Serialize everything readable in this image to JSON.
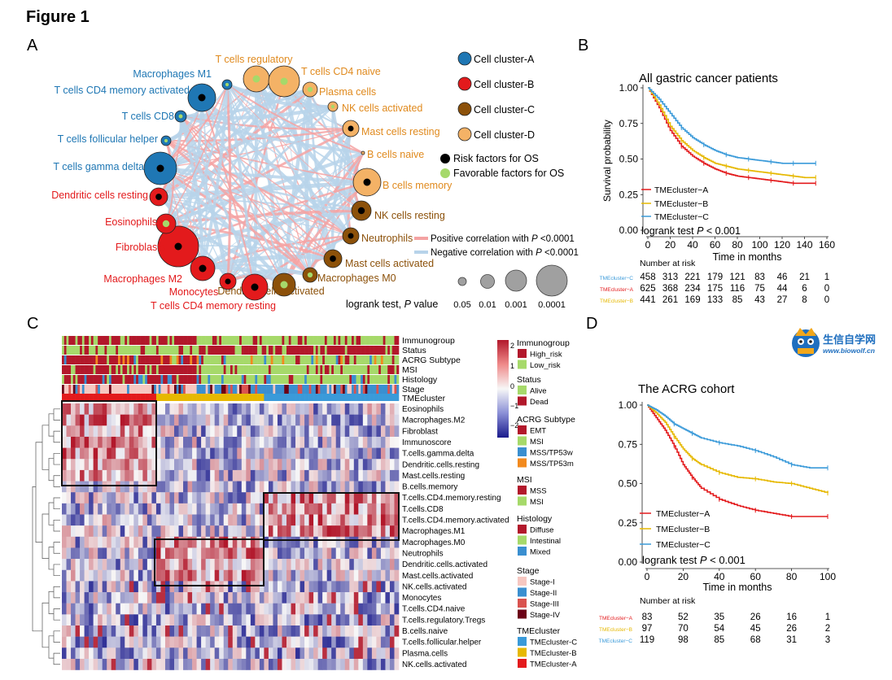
{
  "figure_title": "Figure 1",
  "panels": {
    "A": "A",
    "B": "B",
    "C": "C",
    "D": "D"
  },
  "colors": {
    "clusterA": "#1f77b4",
    "clusterB": "#e31a1c",
    "clusterC": "#8c510a",
    "clusterD": "#f4b266",
    "clusterD_text": "#e08a1e",
    "clusterC_text": "#8c510a",
    "risk": "#000000",
    "favorable": "#a6d96a",
    "pos_corr": "#f4a3a3",
    "neg_corr": "#b7d3ea",
    "tme_A": "#e31a1c",
    "tme_B": "#e6b800",
    "tme_C": "#3a9ad9"
  },
  "network": {
    "legend": {
      "clusters": [
        "Cell cluster-A",
        "Cell cluster-B",
        "Cell cluster-C",
        "Cell cluster-D"
      ],
      "risk": "Risk factors for OS",
      "favorable": "Favorable factors for OS",
      "pos_corr": "Positive correlation with ",
      "neg_corr": "Negative correlation with ",
      "p_italic": "P",
      "p_value_text": " <0.0001",
      "size_title_prefix": "logrank test, ",
      "size_title_suffix": " value",
      "size_values": [
        "0.05",
        "0.01",
        "0.001",
        "0.0001"
      ]
    },
    "nodes": [
      {
        "label": "T cells regulatory",
        "cluster": "D",
        "factor": "favorable"
      },
      {
        "label": "T cells CD4 naive",
        "cluster": "D",
        "factor": "favorable"
      },
      {
        "label": "Plasma cells",
        "cluster": "D",
        "factor": "favorable"
      },
      {
        "label": "NK cells activated",
        "cluster": "D",
        "factor": "favorable"
      },
      {
        "label": "Mast cells resting",
        "cluster": "D",
        "factor": "risk"
      },
      {
        "label": "B cells naive",
        "cluster": "D",
        "factor": "risk"
      },
      {
        "label": "B cells memory",
        "cluster": "D",
        "factor": "risk"
      },
      {
        "label": "NK cells resting",
        "cluster": "C",
        "factor": "risk"
      },
      {
        "label": "Neutrophils",
        "cluster": "C",
        "factor": "risk"
      },
      {
        "label": "Mast cells activated",
        "cluster": "C",
        "factor": "risk"
      },
      {
        "label": "Macrophages M0",
        "cluster": "C",
        "factor": "favorable"
      },
      {
        "label": "Dendritic cells activated",
        "cluster": "C",
        "factor": "favorable"
      },
      {
        "label": "T cells CD4 memory resting",
        "cluster": "B",
        "factor": "risk"
      },
      {
        "label": "Monocytes",
        "cluster": "B",
        "factor": "risk"
      },
      {
        "label": "Macrophages M2",
        "cluster": "B",
        "factor": "risk"
      },
      {
        "label": "Fibroblasts",
        "cluster": "B",
        "factor": "risk"
      },
      {
        "label": "Eosinophils",
        "cluster": "B",
        "factor": "favorable"
      },
      {
        "label": "Dendritic cells resting",
        "cluster": "B",
        "factor": "risk"
      },
      {
        "label": "T cells gamma delta",
        "cluster": "A",
        "factor": "risk"
      },
      {
        "label": "T cells follicular helper",
        "cluster": "A",
        "factor": "favorable"
      },
      {
        "label": "T cells CD8",
        "cluster": "A",
        "factor": "favorable"
      },
      {
        "label": "T cells CD4 memory activated",
        "cluster": "A",
        "factor": "risk"
      },
      {
        "label": "Macrophages M1",
        "cluster": "A",
        "factor": "favorable"
      }
    ]
  },
  "km_B": {
    "title": "All gastric cancer patients",
    "xlabel": "Time in months",
    "ylabel": "Survival probability",
    "x_ticks": [
      "0",
      "20",
      "40",
      "60",
      "80",
      "100",
      "120",
      "140",
      "160"
    ],
    "y_ticks": [
      "0.00",
      "0.25",
      "0.50",
      "0.75",
      "1.00"
    ],
    "xlim": [
      0,
      160
    ],
    "ylim": [
      0,
      1
    ],
    "legend": [
      "TMEcluster−A",
      "TMEcluster−B",
      "TMEcluster−C"
    ],
    "logrank_prefix": "logrank test ",
    "logrank_p": "P",
    "logrank_value": " < 0.001",
    "risk_title": "Number at risk",
    "risk_rows": [
      {
        "label": "TMEcluster−C",
        "values": [
          "458",
          "313",
          "221",
          "179",
          "121",
          "83",
          "46",
          "21",
          "1"
        ]
      },
      {
        "label": "TMEcluster−A",
        "values": [
          "625",
          "368",
          "234",
          "175",
          "116",
          "75",
          "44",
          "6",
          "0"
        ]
      },
      {
        "label": "TMEcluster−B",
        "values": [
          "441",
          "261",
          "169",
          "133",
          "85",
          "43",
          "27",
          "8",
          "0"
        ]
      }
    ]
  },
  "km_D": {
    "title": "The ACRG cohort",
    "xlabel": "Time in months",
    "x_ticks": [
      "0",
      "20",
      "40",
      "60",
      "80",
      "100"
    ],
    "y_ticks": [
      "0.00",
      "0.25",
      "0.50",
      "0.75",
      "1.00"
    ],
    "xlim": [
      0,
      100
    ],
    "ylim": [
      0,
      1
    ],
    "legend": [
      "TMEcluster−A",
      "TMEcluster−B",
      "TMEcluster−C"
    ],
    "logrank_prefix": "logrank test ",
    "logrank_p": "P",
    "logrank_value": " < 0.001",
    "risk_title": "Number at risk",
    "risk_rows": [
      {
        "label": "TMEcluster−A",
        "values": [
          "83",
          "52",
          "35",
          "26",
          "16",
          "1"
        ]
      },
      {
        "label": "TMEcluster−B",
        "values": [
          "97",
          "70",
          "54",
          "45",
          "26",
          "2"
        ]
      },
      {
        "label": "TMEcluster−C",
        "values": [
          "119",
          "98",
          "85",
          "68",
          "31",
          "3"
        ]
      }
    ]
  },
  "chart_data": [
    {
      "type": "line",
      "xlabel": "Time in months",
      "ylabel": "Survival probability",
      "xlim": [
        0,
        160
      ],
      "ylim": [
        0,
        1
      ],
      "x": [
        0,
        10,
        20,
        30,
        40,
        50,
        60,
        70,
        80,
        90,
        100,
        110,
        120,
        130,
        140,
        150
      ],
      "series": [
        {
          "name": "TMEcluster−A",
          "values": [
            1.0,
            0.86,
            0.7,
            0.59,
            0.52,
            0.47,
            0.43,
            0.4,
            0.38,
            0.37,
            0.36,
            0.35,
            0.34,
            0.33,
            0.33,
            0.33
          ]
        },
        {
          "name": "TMEcluster−B",
          "values": [
            1.0,
            0.88,
            0.73,
            0.63,
            0.56,
            0.51,
            0.47,
            0.45,
            0.43,
            0.42,
            0.41,
            0.4,
            0.39,
            0.38,
            0.37,
            0.37
          ]
        },
        {
          "name": "TMEcluster−C",
          "values": [
            1.0,
            0.92,
            0.82,
            0.72,
            0.65,
            0.6,
            0.56,
            0.53,
            0.51,
            0.5,
            0.49,
            0.48,
            0.47,
            0.47,
            0.47,
            0.47
          ]
        }
      ]
    },
    {
      "type": "line",
      "xlabel": "Time in months",
      "xlim": [
        0,
        100
      ],
      "ylim": [
        0,
        1
      ],
      "x": [
        0,
        5,
        10,
        15,
        20,
        25,
        30,
        40,
        50,
        60,
        70,
        80,
        90,
        100
      ],
      "series": [
        {
          "name": "TMEcluster−A",
          "values": [
            1.0,
            0.92,
            0.84,
            0.74,
            0.62,
            0.54,
            0.47,
            0.4,
            0.36,
            0.33,
            0.31,
            0.29,
            0.29,
            0.29
          ]
        },
        {
          "name": "TMEcluster−B",
          "values": [
            1.0,
            0.95,
            0.89,
            0.8,
            0.72,
            0.66,
            0.62,
            0.57,
            0.54,
            0.53,
            0.51,
            0.5,
            0.47,
            0.44
          ]
        },
        {
          "name": "TMEcluster−C",
          "values": [
            1.0,
            0.97,
            0.93,
            0.88,
            0.85,
            0.82,
            0.79,
            0.76,
            0.74,
            0.71,
            0.67,
            0.62,
            0.6,
            0.6
          ]
        }
      ]
    }
  ],
  "heatmap": {
    "annotation_rows": [
      "Immunogroup",
      "Status",
      "ACRG Subtype",
      "MSI",
      "Histology",
      "Stage",
      "TMEcluster"
    ],
    "cell_rows": [
      "Eosinophils",
      "Macrophages.M2",
      "Fibroblast",
      "Immunoscore",
      "T.cells.gamma.delta",
      "Dendritic.cells.resting",
      "Mast.cells.resting",
      "B.cells.memory",
      "T.cells.CD4.memory.resting",
      "T.cells.CD8",
      "T.cells.CD4.memory.activated",
      "Macrophages.M1",
      "Macrophages.M0",
      "Neutrophils",
      "Dendritic.cells.activated",
      "Mast.cells.activated",
      "NK.cells.activated",
      "Monocytes",
      "T.cells.CD4.naive",
      "T.cells.regulatory.Tregs",
      "B.cells.naive",
      "T.cells.follicular.helper",
      "Plasma.cells",
      "NK.cells.activated"
    ],
    "scale_ticks": [
      "2",
      "1",
      "0",
      "−1",
      "−2"
    ],
    "legends": [
      {
        "title": "Immunogroup",
        "items": [
          {
            "label": "High_risk",
            "color": "#b2182b"
          },
          {
            "label": "Low_risk",
            "color": "#a6d96a"
          }
        ]
      },
      {
        "title": "Status",
        "items": [
          {
            "label": "Alive",
            "color": "#a6d96a"
          },
          {
            "label": "Dead",
            "color": "#b2182b"
          }
        ]
      },
      {
        "title": "ACRG Subtype",
        "items": [
          {
            "label": "EMT",
            "color": "#b2182b"
          },
          {
            "label": "MSI",
            "color": "#a6d96a"
          },
          {
            "label": "MSS/TP53w",
            "color": "#3a8fd0"
          },
          {
            "label": "MSS/TP53m",
            "color": "#f28a1e"
          }
        ]
      },
      {
        "title": "MSI",
        "items": [
          {
            "label": "MSS",
            "color": "#b2182b"
          },
          {
            "label": "MSI",
            "color": "#a6d96a"
          }
        ]
      },
      {
        "title": "Histology",
        "items": [
          {
            "label": "Diffuse",
            "color": "#b2182b"
          },
          {
            "label": "Intestinal",
            "color": "#a6d96a"
          },
          {
            "label": "Mixed",
            "color": "#3a8fd0"
          }
        ]
      },
      {
        "title": "Stage",
        "items": [
          {
            "label": "Stage-I",
            "color": "#f6c7c1"
          },
          {
            "label": "Stage-II",
            "color": "#3a8fd0"
          },
          {
            "label": "Stage-III",
            "color": "#d9534f"
          },
          {
            "label": "Stage-IV",
            "color": "#6b0016"
          }
        ]
      },
      {
        "title": "TMEcluster",
        "items": [
          {
            "label": "TMEcluster-C",
            "color": "#3a9ad9"
          },
          {
            "label": "TMEcluster-B",
            "color": "#e6b800"
          },
          {
            "label": "TMEcluster-A",
            "color": "#e31a1c"
          }
        ]
      }
    ]
  },
  "watermark": {
    "cn": "生信自学网",
    "url": "www.biowolf.cn",
    "logo": "wolf-owl-logo"
  }
}
